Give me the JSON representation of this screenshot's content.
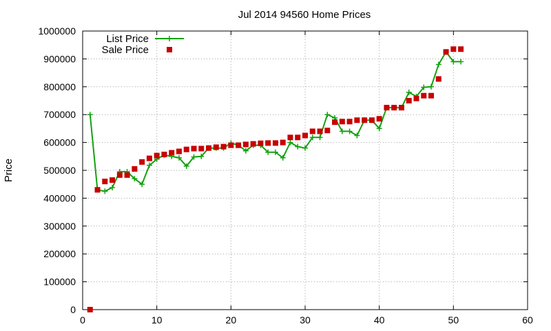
{
  "chart_data": {
    "type": "line",
    "title": "Jul 2014 94560 Home Prices",
    "xlabel": "",
    "ylabel": "Price",
    "xlim": [
      0,
      60
    ],
    "ylim": [
      0,
      1000000
    ],
    "xticks": [
      "0",
      "10",
      "20",
      "30",
      "40",
      "50",
      "60"
    ],
    "yticks": [
      "0",
      "100000",
      "200000",
      "300000",
      "400000",
      "500000",
      "600000",
      "700000",
      "800000",
      "900000",
      "1000000"
    ],
    "grid": true,
    "legend_position": "top-left",
    "series": [
      {
        "name": "List Price",
        "style": "linespoints",
        "color": "#13a10e",
        "marker": "plus",
        "x": [
          1,
          2,
          3,
          4,
          5,
          6,
          7,
          8,
          9,
          10,
          11,
          12,
          13,
          14,
          15,
          16,
          17,
          18,
          19,
          20,
          21,
          22,
          23,
          24,
          25,
          26,
          27,
          28,
          29,
          30,
          31,
          32,
          33,
          34,
          35,
          36,
          37,
          38,
          39,
          40,
          41,
          42,
          43,
          44,
          45,
          46,
          47,
          48,
          49,
          50,
          51
        ],
        "y": [
          700000,
          430000,
          425000,
          438000,
          495000,
          495000,
          470000,
          450000,
          518000,
          540000,
          555000,
          550000,
          545000,
          515000,
          548000,
          550000,
          580000,
          580000,
          580000,
          598000,
          590000,
          570000,
          590000,
          590000,
          565000,
          565000,
          545000,
          600000,
          585000,
          580000,
          618000,
          618000,
          700000,
          688000,
          640000,
          640000,
          625000,
          680000,
          680000,
          650000,
          725000,
          725000,
          725000,
          780000,
          765000,
          798000,
          800000,
          880000,
          925000,
          890000,
          890000
        ]
      },
      {
        "name": "Sale Price",
        "style": "points",
        "color": "#c80000",
        "marker": "square",
        "x": [
          1,
          2,
          3,
          4,
          5,
          6,
          7,
          8,
          9,
          10,
          11,
          12,
          13,
          14,
          15,
          16,
          17,
          18,
          19,
          20,
          21,
          22,
          23,
          24,
          25,
          26,
          27,
          28,
          29,
          30,
          31,
          32,
          33,
          34,
          35,
          36,
          37,
          38,
          39,
          40,
          41,
          42,
          43,
          44,
          45,
          46,
          47,
          48,
          49,
          50,
          51
        ],
        "y": [
          0,
          430000,
          460000,
          465000,
          483000,
          483000,
          505000,
          530000,
          543000,
          553000,
          557000,
          563000,
          568000,
          575000,
          578000,
          578000,
          580000,
          583000,
          585000,
          590000,
          590000,
          593000,
          595000,
          597000,
          598000,
          598000,
          600000,
          618000,
          618000,
          625000,
          640000,
          640000,
          643000,
          673000,
          675000,
          675000,
          680000,
          680000,
          680000,
          685000,
          725000,
          725000,
          725000,
          750000,
          758000,
          768000,
          768000,
          828000,
          925000,
          935000,
          935000
        ]
      }
    ]
  }
}
